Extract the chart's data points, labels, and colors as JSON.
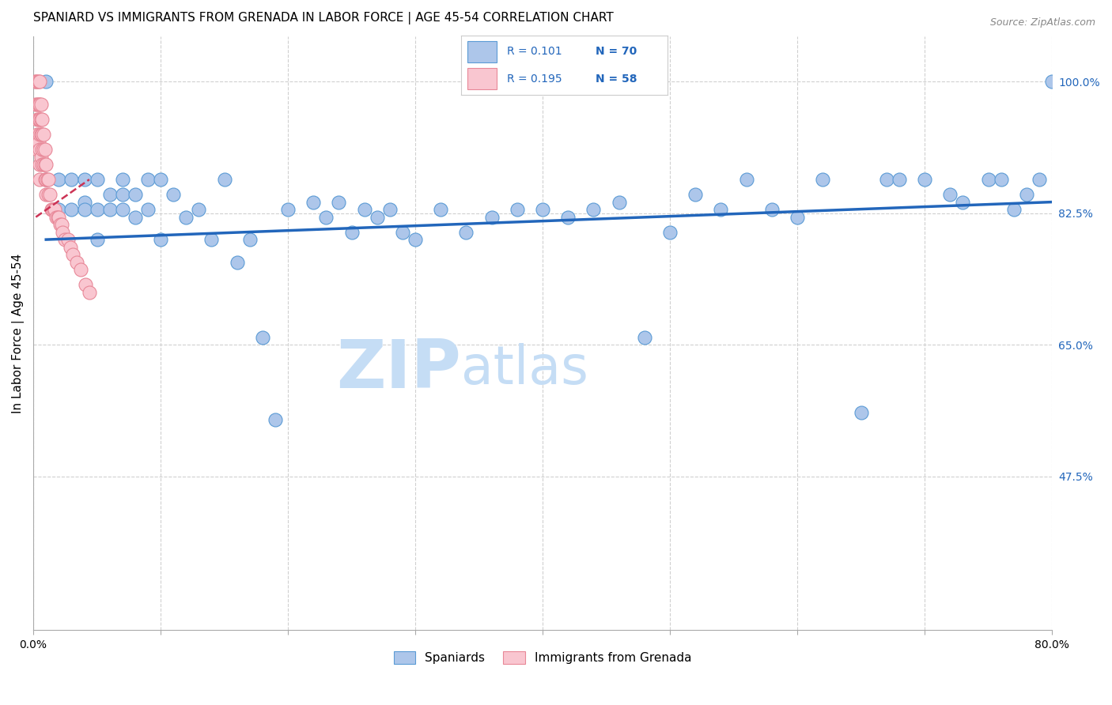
{
  "title": "SPANIARD VS IMMIGRANTS FROM GRENADA IN LABOR FORCE | AGE 45-54 CORRELATION CHART",
  "source": "Source: ZipAtlas.com",
  "ylabel": "In Labor Force | Age 45-54",
  "xlim": [
    0.0,
    0.8
  ],
  "ylim": [
    0.27,
    1.06
  ],
  "xticks": [
    0.0,
    0.1,
    0.2,
    0.3,
    0.4,
    0.5,
    0.6,
    0.7,
    0.8
  ],
  "xticklabels": [
    "0.0%",
    "",
    "",
    "",
    "",
    "",
    "",
    "",
    "80.0%"
  ],
  "ytick_positions": [
    1.0,
    0.825,
    0.65,
    0.475
  ],
  "ytick_labels": [
    "100.0%",
    "82.5%",
    "65.0%",
    "47.5%"
  ],
  "legend_blue_r": "R = 0.101",
  "legend_blue_n": "N = 70",
  "legend_pink_r": "R = 0.195",
  "legend_pink_n": "N = 58",
  "blue_color": "#adc6ea",
  "blue_edge_color": "#5b9bd5",
  "blue_line_color": "#2266bb",
  "pink_color": "#f9c6d0",
  "pink_edge_color": "#e88898",
  "pink_line_color": "#cc3355",
  "watermark_zip": "ZIP",
  "watermark_atlas": "atlas",
  "watermark_color": "#c5ddf5",
  "grid_color": "#d0d0d0",
  "title_fontsize": 11,
  "axis_label_fontsize": 10,
  "tick_label_fontsize": 10,
  "blue_scatter_x": [
    0.01,
    0.01,
    0.02,
    0.02,
    0.03,
    0.03,
    0.04,
    0.04,
    0.04,
    0.05,
    0.05,
    0.05,
    0.06,
    0.06,
    0.07,
    0.07,
    0.07,
    0.08,
    0.08,
    0.09,
    0.09,
    0.1,
    0.1,
    0.11,
    0.12,
    0.13,
    0.14,
    0.15,
    0.16,
    0.17,
    0.18,
    0.19,
    0.2,
    0.22,
    0.23,
    0.24,
    0.25,
    0.26,
    0.27,
    0.28,
    0.29,
    0.3,
    0.32,
    0.34,
    0.36,
    0.38,
    0.4,
    0.42,
    0.44,
    0.46,
    0.48,
    0.5,
    0.52,
    0.54,
    0.56,
    0.58,
    0.6,
    0.62,
    0.65,
    0.67,
    0.68,
    0.7,
    0.72,
    0.73,
    0.75,
    0.76,
    0.77,
    0.78,
    0.79,
    0.8
  ],
  "blue_scatter_y": [
    1.0,
    0.87,
    0.87,
    0.83,
    0.87,
    0.83,
    0.87,
    0.84,
    0.83,
    0.87,
    0.83,
    0.79,
    0.85,
    0.83,
    0.87,
    0.85,
    0.83,
    0.85,
    0.82,
    0.87,
    0.83,
    0.87,
    0.79,
    0.85,
    0.82,
    0.83,
    0.79,
    0.87,
    0.76,
    0.79,
    0.66,
    0.55,
    0.83,
    0.84,
    0.82,
    0.84,
    0.8,
    0.83,
    0.82,
    0.83,
    0.8,
    0.79,
    0.83,
    0.8,
    0.82,
    0.83,
    0.83,
    0.82,
    0.83,
    0.84,
    0.66,
    0.8,
    0.85,
    0.83,
    0.87,
    0.83,
    0.82,
    0.87,
    0.56,
    0.87,
    0.87,
    0.87,
    0.85,
    0.84,
    0.87,
    0.87,
    0.83,
    0.85,
    0.87,
    1.0
  ],
  "pink_scatter_x": [
    0.002,
    0.002,
    0.002,
    0.003,
    0.003,
    0.003,
    0.003,
    0.003,
    0.004,
    0.004,
    0.004,
    0.004,
    0.005,
    0.005,
    0.005,
    0.005,
    0.005,
    0.005,
    0.005,
    0.006,
    0.006,
    0.006,
    0.006,
    0.007,
    0.007,
    0.007,
    0.007,
    0.008,
    0.008,
    0.008,
    0.009,
    0.009,
    0.009,
    0.01,
    0.01,
    0.01,
    0.011,
    0.012,
    0.012,
    0.013,
    0.014,
    0.015,
    0.016,
    0.017,
    0.018,
    0.019,
    0.02,
    0.021,
    0.022,
    0.023,
    0.025,
    0.027,
    0.029,
    0.031,
    0.034,
    0.037,
    0.041,
    0.044
  ],
  "pink_scatter_y": [
    1.0,
    1.0,
    0.97,
    1.0,
    0.97,
    0.95,
    0.93,
    0.91,
    1.0,
    0.97,
    0.95,
    0.92,
    1.0,
    0.97,
    0.95,
    0.93,
    0.91,
    0.89,
    0.87,
    0.97,
    0.95,
    0.93,
    0.9,
    0.95,
    0.93,
    0.91,
    0.89,
    0.93,
    0.91,
    0.89,
    0.91,
    0.89,
    0.87,
    0.89,
    0.87,
    0.85,
    0.87,
    0.87,
    0.85,
    0.85,
    0.83,
    0.83,
    0.83,
    0.83,
    0.82,
    0.82,
    0.82,
    0.81,
    0.81,
    0.8,
    0.79,
    0.79,
    0.78,
    0.77,
    0.76,
    0.75,
    0.73,
    0.72
  ],
  "blue_trend_x": [
    0.01,
    0.8
  ],
  "blue_trend_y": [
    0.79,
    0.84
  ],
  "pink_trend_x": [
    0.002,
    0.044
  ],
  "pink_trend_y": [
    0.82,
    0.87
  ]
}
